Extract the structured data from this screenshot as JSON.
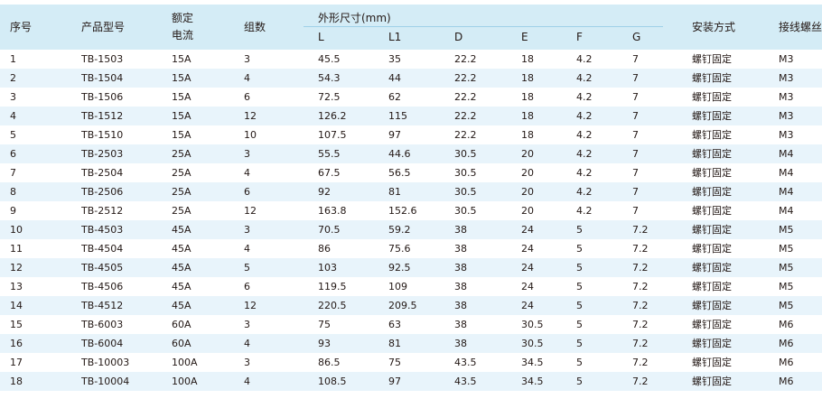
{
  "header": {
    "seq": "序号",
    "model": "产品型号",
    "rated_line1": "额定",
    "rated_line2": "电流",
    "groups": "组数",
    "dims_title": "外形尺寸(mm)",
    "dims": [
      "L",
      "L1",
      "D",
      "E",
      "F",
      "G"
    ],
    "install": "安装方式",
    "terminal": "接线螺丝"
  },
  "rows": [
    [
      "1",
      "TB-1503",
      "15A",
      "3",
      "45.5",
      "35",
      "22.2",
      "18",
      "4.2",
      "7",
      "螺钉固定",
      "M3"
    ],
    [
      "2",
      "TB-1504",
      "15A",
      "4",
      "54.3",
      "44",
      "22.2",
      "18",
      "4.2",
      "7",
      "螺钉固定",
      "M3"
    ],
    [
      "3",
      "TB-1506",
      "15A",
      "6",
      "72.5",
      "62",
      "22.2",
      "18",
      "4.2",
      "7",
      "螺钉固定",
      "M3"
    ],
    [
      "4",
      "TB-1512",
      "15A",
      "12",
      "126.2",
      "115",
      "22.2",
      "18",
      "4.2",
      "7",
      "螺钉固定",
      "M3"
    ],
    [
      "5",
      "TB-1510",
      "15A",
      "10",
      "107.5",
      "97",
      "22.2",
      "18",
      "4.2",
      "7",
      "螺钉固定",
      "M3"
    ],
    [
      "6",
      "TB-2503",
      "25A",
      "3",
      "55.5",
      "44.6",
      "30.5",
      "20",
      "4.2",
      "7",
      "螺钉固定",
      "M4"
    ],
    [
      "7",
      "TB-2504",
      "25A",
      "4",
      "67.5",
      "56.5",
      "30.5",
      "20",
      "4.2",
      "7",
      "螺钉固定",
      "M4"
    ],
    [
      "8",
      "TB-2506",
      "25A",
      "6",
      "92",
      "81",
      "30.5",
      "20",
      "4.2",
      "7",
      "螺钉固定",
      "M4"
    ],
    [
      "9",
      "TB-2512",
      "25A",
      "12",
      "163.8",
      "152.6",
      "30.5",
      "20",
      "4.2",
      "7",
      "螺钉固定",
      "M4"
    ],
    [
      "10",
      "TB-4503",
      "45A",
      "3",
      "70.5",
      "59.2",
      "38",
      "24",
      "5",
      "7.2",
      "螺钉固定",
      "M5"
    ],
    [
      "11",
      "TB-4504",
      "45A",
      "4",
      "86",
      "75.6",
      "38",
      "24",
      "5",
      "7.2",
      "螺钉固定",
      "M5"
    ],
    [
      "12",
      "TB-4505",
      "45A",
      "5",
      "103",
      "92.5",
      "38",
      "24",
      "5",
      "7.2",
      "螺钉固定",
      "M5"
    ],
    [
      "13",
      "TB-4506",
      "45A",
      "6",
      "119.5",
      "109",
      "38",
      "24",
      "5",
      "7.2",
      "螺钉固定",
      "M5"
    ],
    [
      "14",
      "TB-4512",
      "45A",
      "12",
      "220.5",
      "209.5",
      "38",
      "24",
      "5",
      "7.2",
      "螺钉固定",
      "M5"
    ],
    [
      "15",
      "TB-6003",
      "60A",
      "3",
      "75",
      "63",
      "38",
      "30.5",
      "5",
      "7.2",
      "螺钉固定",
      "M6"
    ],
    [
      "16",
      "TB-6004",
      "60A",
      "4",
      "93",
      "81",
      "38",
      "30.5",
      "5",
      "7.2",
      "螺钉固定",
      "M6"
    ],
    [
      "17",
      "TB-10003",
      "100A",
      "3",
      "86.5",
      "75",
      "43.5",
      "34.5",
      "5",
      "7.2",
      "螺钉固定",
      "M6"
    ],
    [
      "18",
      "TB-10004",
      "100A",
      "4",
      "108.5",
      "97",
      "43.5",
      "34.5",
      "5",
      "7.2",
      "螺钉固定",
      "M6"
    ]
  ]
}
